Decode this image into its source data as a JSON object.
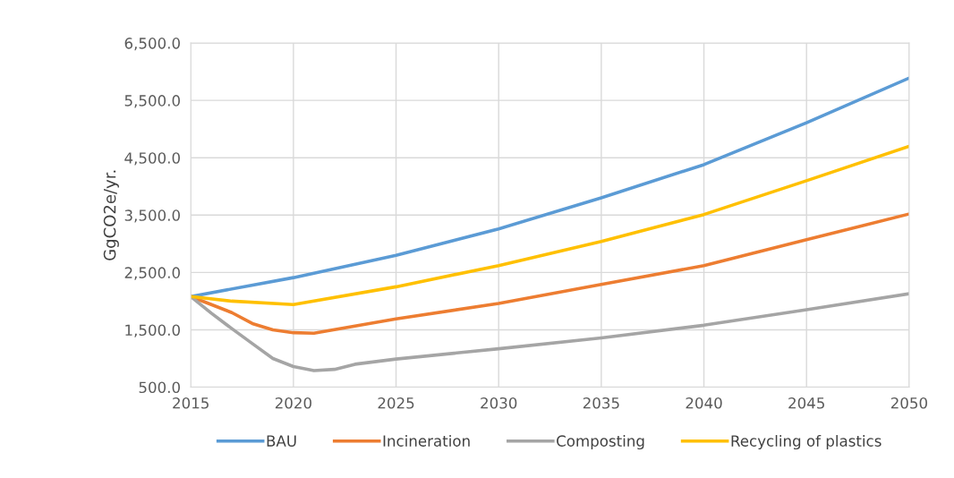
{
  "chart_data": {
    "type": "line",
    "ylabel": "GgCO2e/yr.",
    "xlim": [
      2015,
      2050
    ],
    "ylim": [
      500,
      6500
    ],
    "xticks": [
      2015,
      2020,
      2025,
      2030,
      2035,
      2040,
      2045,
      2050
    ],
    "yticks": [
      {
        "value": 500,
        "label": "500.0"
      },
      {
        "value": 1500,
        "label": "1,500.0"
      },
      {
        "value": 2500,
        "label": "2,500.0"
      },
      {
        "value": 3500,
        "label": "3,500.0"
      },
      {
        "value": 4500,
        "label": "4,500.0"
      },
      {
        "value": 5500,
        "label": "5,500.0"
      },
      {
        "value": 6500,
        "label": "6,500.0"
      }
    ],
    "grid": true,
    "legend": "bottom",
    "marker": "none",
    "line_style": "solid",
    "series": [
      {
        "name": "BAU",
        "color": "#5b9bd5",
        "x": [
          2015,
          2020,
          2025,
          2030,
          2035,
          2040,
          2045,
          2050
        ],
        "values": [
          2080,
          2410,
          2800,
          3260,
          3800,
          4380,
          5110,
          5890
        ]
      },
      {
        "name": "Incineration",
        "color": "#ed7d31",
        "x": [
          2015,
          2017,
          2018,
          2019,
          2020,
          2021,
          2025,
          2030,
          2035,
          2040,
          2045,
          2050
        ],
        "values": [
          2080,
          1800,
          1610,
          1500,
          1450,
          1440,
          1690,
          1960,
          2290,
          2620,
          3070,
          3520
        ]
      },
      {
        "name": "Composting",
        "color": "#a5a5a5",
        "x": [
          2015,
          2016,
          2017,
          2018,
          2019,
          2020,
          2021,
          2022,
          2023,
          2025,
          2030,
          2035,
          2040,
          2045,
          2050
        ],
        "values": [
          2080,
          1790,
          1520,
          1260,
          1000,
          860,
          790,
          810,
          900,
          990,
          1170,
          1360,
          1580,
          1850,
          2130
        ]
      },
      {
        "name": "Recycling of plastics",
        "color": "#ffc000",
        "x": [
          2015,
          2017,
          2020,
          2025,
          2030,
          2035,
          2040,
          2045,
          2050
        ],
        "values": [
          2080,
          2000,
          1940,
          2250,
          2620,
          3040,
          3510,
          4100,
          4700
        ]
      }
    ]
  }
}
